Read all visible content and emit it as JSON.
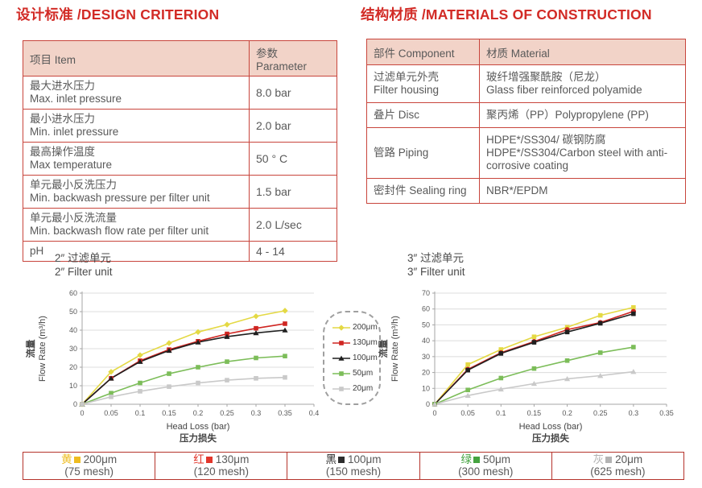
{
  "titles": {
    "design": "设计标准 /DESIGN CRITERION",
    "materials": "结构材质 /MATERIALS OF CONSTRUCTION"
  },
  "design_table": {
    "headers": [
      "项目 Item",
      "参数 Parameter"
    ],
    "rows": [
      {
        "item_cn": "最大进水压力",
        "item_en": "Max. inlet pressure",
        "value": "8.0 bar"
      },
      {
        "item_cn": "最小进水压力",
        "item_en": "Min. inlet pressure",
        "value": "2.0 bar"
      },
      {
        "item_cn": "最高操作温度",
        "item_en": "Max temperature",
        "value": "50 ° C"
      },
      {
        "item_cn": "单元最小反洗压力",
        "item_en": "Min. backwash pressure per filter unit",
        "value": "1.5 bar"
      },
      {
        "item_cn": "单元最小反洗流量",
        "item_en": "Min. backwash flow rate per filter unit",
        "value": "2.0 L/sec"
      },
      {
        "item_cn": "pH",
        "item_en": "",
        "value": "4 - 14"
      }
    ]
  },
  "materials_table": {
    "headers": [
      "部件 Component",
      "材质 Material"
    ],
    "rows": [
      {
        "component_cn": "过滤单元外壳",
        "component_en": "Filter housing",
        "material_cn": "玻纤增强聚酰胺（尼龙）",
        "material_en": "Glass fiber reinforced polyamide"
      },
      {
        "component_cn": "叠片 Disc",
        "component_en": "",
        "material_cn": "聚丙烯（PP）Polypropylene (PP)",
        "material_en": ""
      },
      {
        "component_cn": "管路 Piping",
        "component_en": "",
        "material_cn": "HDPE*/SS304/ 碳钢防腐",
        "material_en": "HDPE*/SS304/Carbon steel with anti-corrosive coating"
      },
      {
        "component_cn": "密封件 Sealing ring",
        "component_en": "",
        "material_cn": "NBR*/EPDM",
        "material_en": ""
      }
    ]
  },
  "chart_data": [
    {
      "type": "line",
      "title_cn": "2″ 过滤单元",
      "title_en": "2″ Filter unit",
      "xlabel": "Head Loss (bar)",
      "xlabel_cn": "压力损失",
      "ylabel_cn": "流量",
      "ylabel": "Flow Rate (m³/h)",
      "xlim": [
        0,
        0.4
      ],
      "ylim": [
        0,
        60
      ],
      "xticks": [
        "0",
        "0.05",
        "0.1",
        "0.15",
        "0.2",
        "0.25",
        "0.3",
        "0.35",
        "0.4"
      ],
      "yticks": [
        0,
        10,
        20,
        30,
        40,
        50,
        60
      ],
      "grid": true,
      "x": [
        0,
        0.05,
        0.1,
        0.15,
        0.2,
        0.25,
        0.3,
        0.35
      ],
      "series": [
        {
          "name": "200μm",
          "color": "#e4d944",
          "marker": "diamond",
          "values": [
            0,
            17.5,
            26.5,
            33,
            39,
            43,
            47.5,
            50.5
          ]
        },
        {
          "name": "130μm",
          "color": "#cf2521",
          "marker": "square",
          "values": [
            0,
            14,
            23.5,
            29.5,
            34,
            38,
            41,
            43.5
          ]
        },
        {
          "name": "100μm",
          "color": "#1f1f1f",
          "marker": "triangle",
          "values": [
            0,
            14,
            23,
            29,
            33.5,
            36.5,
            38.5,
            40
          ]
        },
        {
          "name": "50μm",
          "color": "#7cbd59",
          "marker": "square",
          "values": [
            0,
            6,
            11.5,
            16.5,
            20,
            23,
            25,
            26
          ]
        },
        {
          "name": "20μm",
          "color": "#c9c9c9",
          "marker": "square",
          "values": [
            0,
            4,
            7,
            9.5,
            11.5,
            13,
            14,
            14.5
          ]
        }
      ]
    },
    {
      "type": "line",
      "title_cn": "3″ 过滤单元",
      "title_en": "3″ Filter unit",
      "xlabel": "Head Loss (bar)",
      "xlabel_cn": "压力损失",
      "ylabel_cn": "流量",
      "ylabel": "Flow Rate (m³/h)",
      "xlim": [
        0,
        0.35
      ],
      "ylim": [
        0,
        70
      ],
      "xticks": [
        "0",
        "0.05",
        "0.1",
        "0.15",
        "0.2",
        "0.25",
        "0.3",
        "0.35"
      ],
      "yticks": [
        0,
        10,
        20,
        30,
        40,
        50,
        60,
        70
      ],
      "grid": true,
      "x": [
        0,
        0.05,
        0.1,
        0.15,
        0.2,
        0.25,
        0.3
      ],
      "series": [
        {
          "name": "200μm",
          "color": "#e4d944",
          "marker": "square",
          "values": [
            0,
            25,
            34.5,
            42.5,
            48.5,
            56,
            61
          ]
        },
        {
          "name": "130μm",
          "color": "#cf2521",
          "marker": "circle",
          "values": [
            0,
            22,
            32.5,
            39.5,
            47,
            51.5,
            58.5
          ]
        },
        {
          "name": "100μm",
          "color": "#1f1f1f",
          "marker": "square",
          "values": [
            0,
            21.5,
            32,
            39,
            45.5,
            51,
            57
          ]
        },
        {
          "name": "50μm",
          "color": "#7cbd59",
          "marker": "square",
          "values": [
            0,
            9,
            16.5,
            22.5,
            27.5,
            32.5,
            36
          ]
        },
        {
          "name": "20μm",
          "color": "#c9c9c9",
          "marker": "triangle",
          "values": [
            0,
            5.5,
            9.5,
            13,
            16,
            18,
            20.5
          ]
        }
      ]
    }
  ],
  "chart_legend": {
    "items": [
      {
        "label": "200μm",
        "color": "#e4d944",
        "marker": "diamond"
      },
      {
        "label": "130μm",
        "color": "#cf2521",
        "marker": "square"
      },
      {
        "label": "100μm",
        "color": "#1f1f1f",
        "marker": "triangle"
      },
      {
        "label": "50μm",
        "color": "#7cbd59",
        "marker": "square"
      },
      {
        "label": "20μm",
        "color": "#c9c9c9",
        "marker": "square"
      }
    ]
  },
  "bottom_legend": {
    "cells": [
      {
        "color_cn": "黄",
        "label": "200μm",
        "mesh": "(75 mesh)",
        "color": "#eebc20"
      },
      {
        "color_cn": "红",
        "label": "130μm",
        "mesh": "(120 mesh)",
        "color": "#e2362b"
      },
      {
        "color_cn": "黑",
        "label": "100μm",
        "mesh": "(150 mesh)",
        "color": "#2d2d2d"
      },
      {
        "color_cn": "绿",
        "label": "50μm",
        "mesh": "(300 mesh)",
        "color": "#45a340"
      },
      {
        "color_cn": "灰",
        "label": "20μm",
        "mesh": "(625 mesh)",
        "color": "#b3b3b3"
      }
    ]
  }
}
